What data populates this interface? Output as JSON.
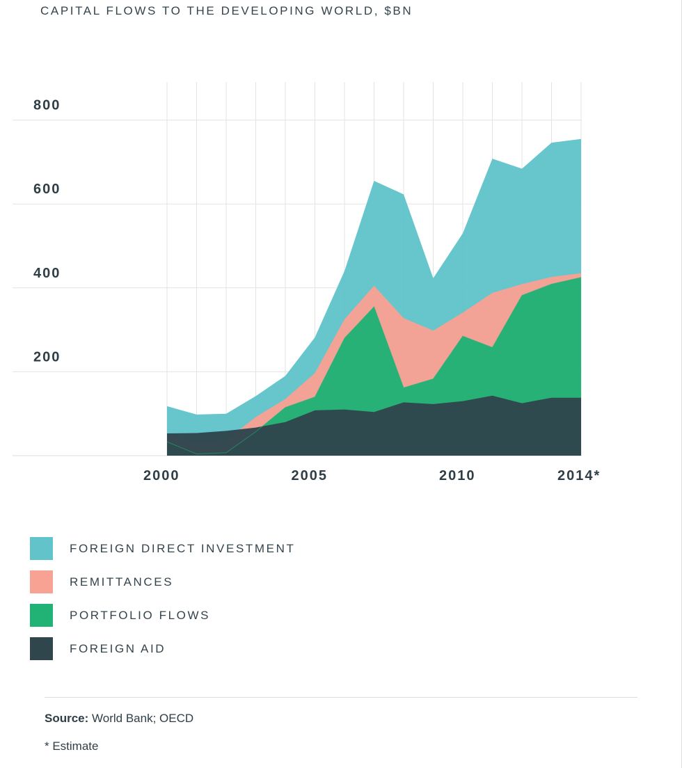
{
  "title": "CAPITAL FLOWS TO THE DEVELOPING WORLD, $BN",
  "legend": [
    {
      "label": "FOREIGN DIRECT INVESTMENT",
      "color": "#62c3ca"
    },
    {
      "label": "REMITTANCES",
      "color": "#f7a293"
    },
    {
      "label": "PORTFOLIO FLOWS",
      "color": "#21b275"
    },
    {
      "label": "FOREIGN AID",
      "color": "#30464d"
    }
  ],
  "footer": {
    "source_label": "Source:",
    "source_text": "World Bank; OECD",
    "note": "* Estimate"
  },
  "chart_data": {
    "type": "area",
    "stacked": true,
    "grid": true,
    "x": [
      2000,
      2001,
      2002,
      2003,
      2004,
      2005,
      2006,
      2007,
      2008,
      2009,
      2010,
      2011,
      2012,
      2013,
      2014
    ],
    "x_tick_labels": [
      {
        "x": 2000,
        "label": "2000"
      },
      {
        "x": 2005,
        "label": "2005"
      },
      {
        "x": 2010,
        "label": "2010"
      },
      {
        "x": 2014,
        "label": "2014*"
      }
    ],
    "y_tick_labels": [
      {
        "y": 200,
        "label": "200"
      },
      {
        "y": 400,
        "label": "400"
      },
      {
        "y": 600,
        "label": "600"
      },
      {
        "y": 800,
        "label": "800"
      }
    ],
    "ylim": [
      0,
      880
    ],
    "series": [
      {
        "name": "FOREIGN AID",
        "color": "#30464d",
        "values": [
          53,
          54,
          59,
          67,
          80,
          108,
          110,
          104,
          127,
          123,
          130,
          143,
          125,
          138,
          138
        ]
      },
      {
        "name": "PORTFOLIO FLOWS",
        "color": "#21b275",
        "values": [
          -20,
          -50,
          -52,
          -10,
          35,
          32,
          170,
          251,
          35,
          60,
          155,
          115,
          257,
          271,
          287
        ]
      },
      {
        "name": "REMITTANCES",
        "color": "#f7a293",
        "values": [
          20,
          23,
          30,
          35,
          20,
          57,
          45,
          50,
          166,
          115,
          56,
          130,
          27,
          17,
          10
        ]
      },
      {
        "name": "FOREIGN DIRECT INVESTMENT",
        "color": "#62c3ca",
        "values": [
          65,
          71,
          63,
          50,
          55,
          85,
          115,
          250,
          295,
          125,
          189,
          320,
          275,
          320,
          320
        ]
      }
    ]
  }
}
